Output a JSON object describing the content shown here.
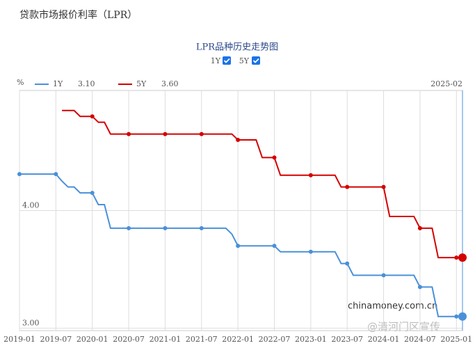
{
  "header": {
    "title": "贷款市场报价利率（LPR）"
  },
  "chart_data": {
    "type": "line",
    "title": "LPR品种历史走势图",
    "y_unit": "%",
    "x": [
      "2019-01",
      "2019-02",
      "2019-03",
      "2019-04",
      "2019-05",
      "2019-06",
      "2019-07",
      "2019-08",
      "2019-09",
      "2019-10",
      "2019-11",
      "2019-12",
      "2020-01",
      "2020-02",
      "2020-03",
      "2020-04",
      "2020-05",
      "2020-06",
      "2020-07",
      "2020-08",
      "2020-09",
      "2020-10",
      "2020-11",
      "2020-12",
      "2021-01",
      "2021-02",
      "2021-03",
      "2021-04",
      "2021-05",
      "2021-06",
      "2021-07",
      "2021-08",
      "2021-09",
      "2021-10",
      "2021-11",
      "2021-12",
      "2022-01",
      "2022-02",
      "2022-03",
      "2022-04",
      "2022-05",
      "2022-06",
      "2022-07",
      "2022-08",
      "2022-09",
      "2022-10",
      "2022-11",
      "2022-12",
      "2023-01",
      "2023-02",
      "2023-03",
      "2023-04",
      "2023-05",
      "2023-06",
      "2023-07",
      "2023-08",
      "2023-09",
      "2023-10",
      "2023-11",
      "2023-12",
      "2024-01",
      "2024-02",
      "2024-03",
      "2024-04",
      "2024-05",
      "2024-06",
      "2024-07",
      "2024-08",
      "2024-09",
      "2024-10",
      "2024-11",
      "2024-12",
      "2025-01",
      "2025-02"
    ],
    "series": [
      {
        "name": "1Y",
        "color": "#4a90d9",
        "latest_label": "3.10",
        "values": [
          4.31,
          4.31,
          4.31,
          4.31,
          4.31,
          4.31,
          4.31,
          4.25,
          4.2,
          4.2,
          4.15,
          4.15,
          4.15,
          4.05,
          4.05,
          3.85,
          3.85,
          3.85,
          3.85,
          3.85,
          3.85,
          3.85,
          3.85,
          3.85,
          3.85,
          3.85,
          3.85,
          3.85,
          3.85,
          3.85,
          3.85,
          3.85,
          3.85,
          3.85,
          3.85,
          3.8,
          3.7,
          3.7,
          3.7,
          3.7,
          3.7,
          3.7,
          3.7,
          3.65,
          3.65,
          3.65,
          3.65,
          3.65,
          3.65,
          3.65,
          3.65,
          3.65,
          3.65,
          3.55,
          3.55,
          3.45,
          3.45,
          3.45,
          3.45,
          3.45,
          3.45,
          3.45,
          3.45,
          3.45,
          3.45,
          3.45,
          3.35,
          3.35,
          3.35,
          3.1,
          3.1,
          3.1,
          3.1,
          3.1
        ]
      },
      {
        "name": "5Y",
        "color": "#d40000",
        "latest_label": "3.60",
        "values": [
          null,
          null,
          null,
          null,
          null,
          null,
          null,
          4.85,
          4.85,
          4.85,
          4.8,
          4.8,
          4.8,
          4.75,
          4.75,
          4.65,
          4.65,
          4.65,
          4.65,
          4.65,
          4.65,
          4.65,
          4.65,
          4.65,
          4.65,
          4.65,
          4.65,
          4.65,
          4.65,
          4.65,
          4.65,
          4.65,
          4.65,
          4.65,
          4.65,
          4.65,
          4.6,
          4.6,
          4.6,
          4.6,
          4.45,
          4.45,
          4.45,
          4.3,
          4.3,
          4.3,
          4.3,
          4.3,
          4.3,
          4.3,
          4.3,
          4.3,
          4.3,
          4.2,
          4.2,
          4.2,
          4.2,
          4.2,
          4.2,
          4.2,
          4.2,
          3.95,
          3.95,
          3.95,
          3.95,
          3.95,
          3.85,
          3.85,
          3.85,
          3.6,
          3.6,
          3.6,
          3.6,
          3.6
        ]
      }
    ],
    "xlim": [
      "2019-01",
      "2025-02"
    ],
    "xticks": [
      "2019-01",
      "2019-07",
      "2020-01",
      "2020-07",
      "2021-01",
      "2021-07",
      "2022-01",
      "2022-07",
      "2023-01",
      "2023-07",
      "2024-01",
      "2024-07",
      "2025-01"
    ],
    "ylim": [
      2.98,
      5.02
    ],
    "yticks": [
      {
        "value": 3,
        "label": "3.00"
      },
      {
        "value": 4,
        "label": "4.00"
      }
    ],
    "grid": true,
    "watermark": "chinamoney.com.cn"
  },
  "footer": {
    "credit": "@清河门区宣传"
  }
}
